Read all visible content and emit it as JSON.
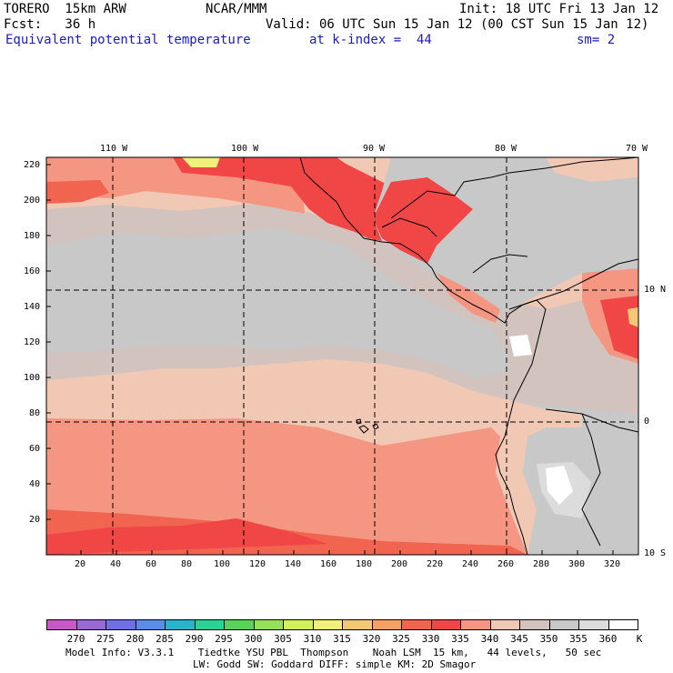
{
  "header": {
    "model": "TORERO  15km ARW",
    "org": "NCAR/MMM",
    "init": "Init: 18 UTC Fri 13 Jan 12",
    "fcst": "Fcst:   36 h",
    "valid": "Valid: 06 UTC Sun 15 Jan 12 (00 CST Sun 15 Jan 12)",
    "field": "Equivalent potential temperature",
    "level": "at k-index =  44",
    "smooth": "sm= 2"
  },
  "map": {
    "lon_labels": [
      "110 W",
      "100 W",
      "90 W",
      "80 W",
      "70 W"
    ],
    "lat_labels": [
      "10 N",
      "0",
      "10 S"
    ],
    "y_ticks": [
      "220",
      "200",
      "180",
      "160",
      "140",
      "120",
      "100",
      "80",
      "60",
      "40",
      "20"
    ],
    "x_ticks": [
      "20",
      "40",
      "60",
      "80",
      "100",
      "120",
      "140",
      "160",
      "180",
      "200",
      "220",
      "240",
      "260",
      "280",
      "300",
      "320"
    ]
  },
  "colorbar": {
    "labels": [
      "270",
      "275",
      "280",
      "285",
      "290",
      "295",
      "300",
      "305",
      "310",
      "315",
      "320",
      "325",
      "330",
      "335",
      "340",
      "345",
      "350",
      "355",
      "360"
    ],
    "unit": "K",
    "colors": [
      "#c85ac8",
      "#9a6ad2",
      "#7070e6",
      "#5a8ee6",
      "#2ab4c8",
      "#2ad296",
      "#5ad25a",
      "#96e05a",
      "#d2f05a",
      "#f0f07a",
      "#f5c878",
      "#f5a064",
      "#f06450",
      "#f04646",
      "#f59682",
      "#f0c8b4",
      "#d2c3be",
      "#c8c8c8",
      "#dcdcdc",
      "#ffffff"
    ]
  },
  "footer": {
    "line1": "Model Info: V3.3.1    Tiedtke YSU PBL  Thompson    Noah LSM  15 km,   44 levels,   50 sec",
    "line2": "LW: Godd SW: Goddard DIFF: simple KM: 2D Smagor"
  }
}
